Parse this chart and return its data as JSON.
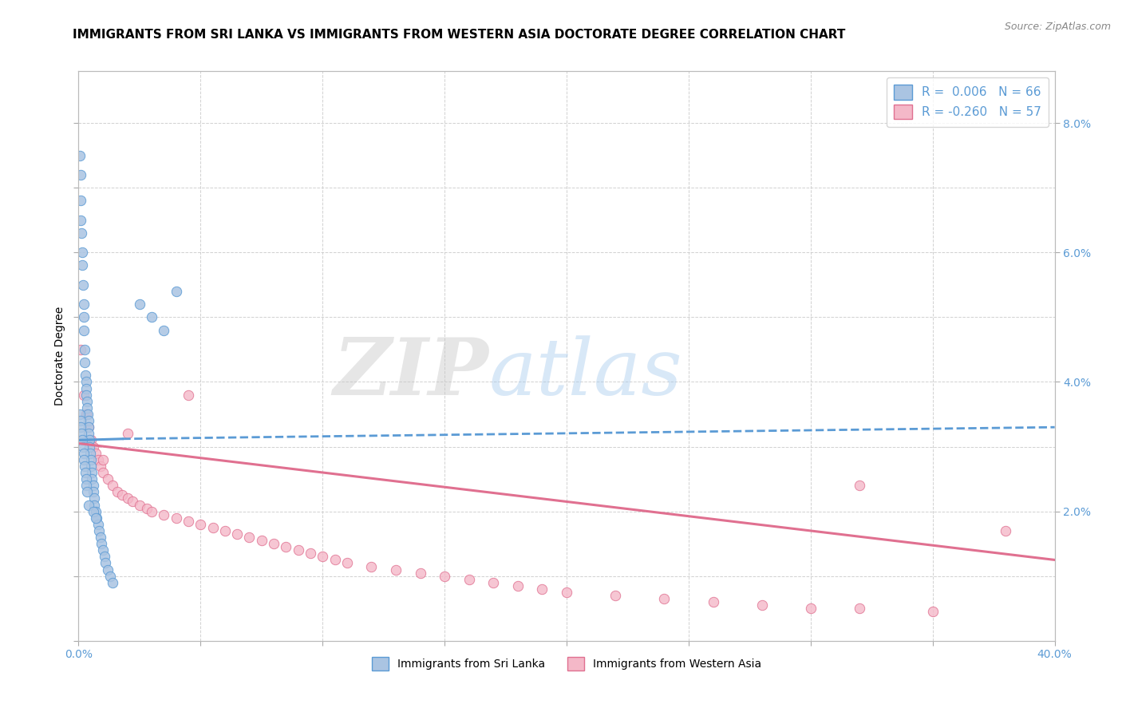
{
  "title": "IMMIGRANTS FROM SRI LANKA VS IMMIGRANTS FROM WESTERN ASIA DOCTORATE DEGREE CORRELATION CHART",
  "source": "Source: ZipAtlas.com",
  "ylabel": "Doctorate Degree",
  "xlim": [
    0.0,
    40.0
  ],
  "ylim": [
    0.0,
    8.8
  ],
  "yticks_right": [
    2.0,
    4.0,
    6.0,
    8.0
  ],
  "series": [
    {
      "label": "Immigrants from Sri Lanka",
      "R": 0.006,
      "N": 66,
      "color": "#aac4e2",
      "edge_color": "#5b9bd5",
      "trend_color": "#5b9bd5",
      "trend_style": "--",
      "x": [
        0.05,
        0.08,
        0.1,
        0.1,
        0.12,
        0.15,
        0.15,
        0.18,
        0.2,
        0.2,
        0.22,
        0.25,
        0.25,
        0.28,
        0.3,
        0.3,
        0.32,
        0.35,
        0.35,
        0.38,
        0.4,
        0.4,
        0.42,
        0.45,
        0.45,
        0.48,
        0.5,
        0.5,
        0.55,
        0.55,
        0.6,
        0.6,
        0.65,
        0.65,
        0.7,
        0.75,
        0.8,
        0.85,
        0.9,
        0.95,
        1.0,
        1.05,
        1.1,
        1.2,
        1.3,
        1.4,
        0.05,
        0.08,
        0.1,
        0.12,
        0.15,
        0.18,
        0.2,
        0.22,
        0.25,
        0.28,
        0.3,
        0.32,
        0.35,
        0.4,
        0.6,
        0.7,
        2.5,
        3.0,
        3.5,
        4.0
      ],
      "y": [
        7.5,
        7.2,
        6.8,
        6.5,
        6.3,
        6.0,
        5.8,
        5.5,
        5.2,
        5.0,
        4.8,
        4.5,
        4.3,
        4.1,
        4.0,
        3.9,
        3.8,
        3.7,
        3.6,
        3.5,
        3.4,
        3.3,
        3.2,
        3.1,
        3.0,
        2.9,
        2.8,
        2.7,
        2.6,
        2.5,
        2.4,
        2.3,
        2.2,
        2.1,
        2.0,
        1.9,
        1.8,
        1.7,
        1.6,
        1.5,
        1.4,
        1.3,
        1.2,
        1.1,
        1.0,
        0.9,
        3.5,
        3.4,
        3.3,
        3.2,
        3.1,
        3.0,
        2.9,
        2.8,
        2.7,
        2.6,
        2.5,
        2.4,
        2.3,
        2.1,
        2.0,
        1.9,
        5.2,
        5.0,
        4.8,
        5.4
      ],
      "trend_x": [
        0.0,
        1.8,
        40.0
      ],
      "trend_y": [
        3.1,
        3.12,
        3.3
      ],
      "trend_solid_end": 1.8
    },
    {
      "label": "Immigrants from Western Asia",
      "R": -0.26,
      "N": 57,
      "color": "#f4b8c8",
      "edge_color": "#e07090",
      "trend_color": "#e07090",
      "trend_style": "-",
      "x": [
        0.1,
        0.2,
        0.3,
        0.4,
        0.5,
        0.6,
        0.7,
        0.8,
        0.9,
        1.0,
        1.2,
        1.4,
        1.6,
        1.8,
        2.0,
        2.2,
        2.5,
        2.8,
        3.0,
        3.5,
        4.0,
        4.5,
        5.0,
        5.5,
        6.0,
        6.5,
        7.0,
        7.5,
        8.0,
        8.5,
        9.0,
        9.5,
        10.0,
        10.5,
        11.0,
        12.0,
        13.0,
        14.0,
        15.0,
        16.0,
        17.0,
        18.0,
        19.0,
        20.0,
        22.0,
        24.0,
        26.0,
        28.0,
        30.0,
        32.0,
        35.0,
        38.0,
        0.3,
        1.0,
        2.0,
        4.5,
        32.0
      ],
      "y": [
        4.5,
        3.8,
        3.5,
        3.3,
        3.1,
        3.0,
        2.9,
        2.8,
        2.7,
        2.6,
        2.5,
        2.4,
        2.3,
        2.25,
        2.2,
        2.15,
        2.1,
        2.05,
        2.0,
        1.95,
        1.9,
        1.85,
        1.8,
        1.75,
        1.7,
        1.65,
        1.6,
        1.55,
        1.5,
        1.45,
        1.4,
        1.35,
        1.3,
        1.25,
        1.2,
        1.15,
        1.1,
        1.05,
        1.0,
        0.95,
        0.9,
        0.85,
        0.8,
        0.75,
        0.7,
        0.65,
        0.6,
        0.55,
        0.5,
        0.5,
        0.45,
        1.7,
        3.5,
        2.8,
        3.2,
        3.8,
        2.4
      ],
      "trend_x": [
        0.0,
        40.0
      ],
      "trend_y": [
        3.05,
        1.25
      ]
    }
  ],
  "title_fontsize": 11,
  "axis_label_fontsize": 10,
  "tick_fontsize": 10
}
